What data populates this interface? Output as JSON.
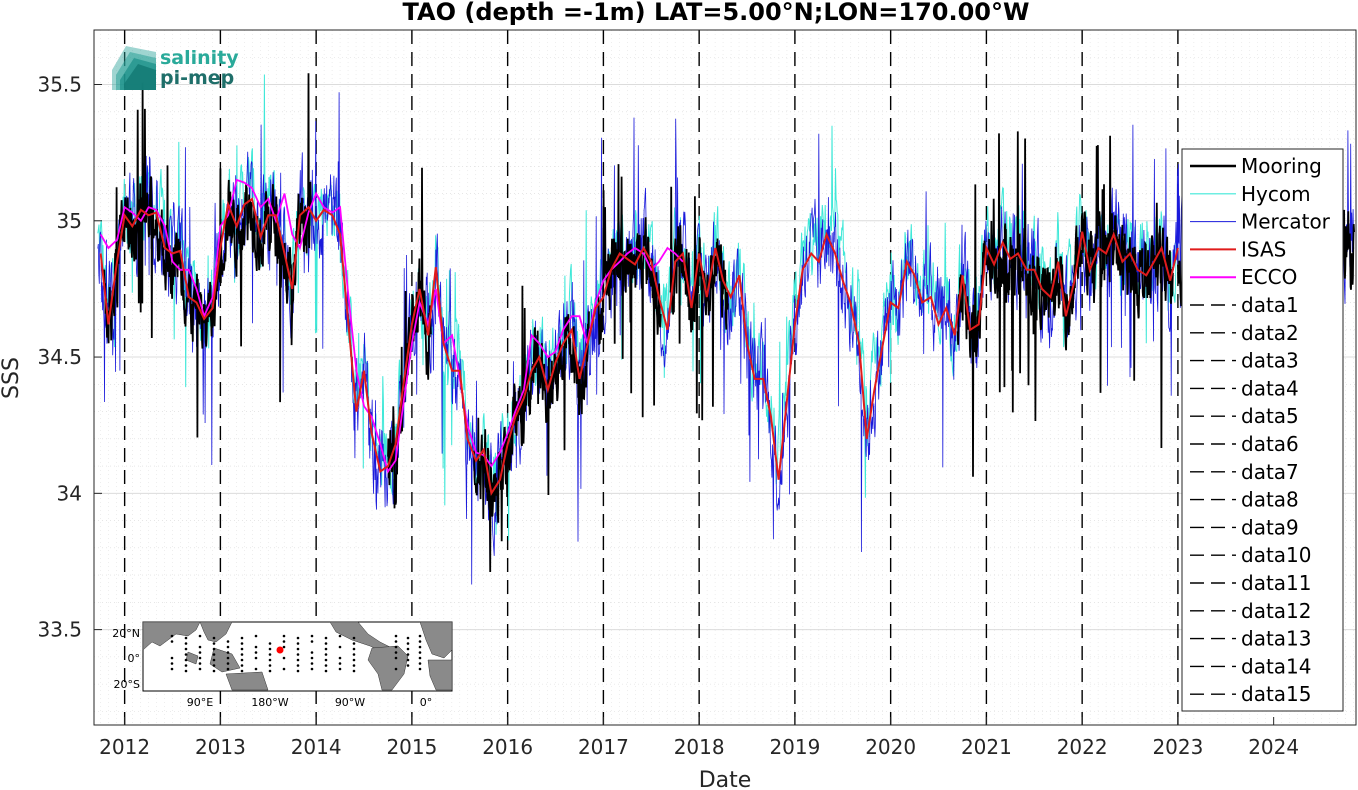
{
  "chart_data": {
    "type": "line",
    "title": "TAO (depth =-1m) LAT=5.00°N;LON=170.00°W",
    "xlabel": "Date",
    "ylabel": "SSS",
    "xlim": [
      "2011-09",
      "2024-11"
    ],
    "ylim": [
      33.15,
      35.7
    ],
    "x_ticks": [
      "2012",
      "2013",
      "2014",
      "2015",
      "2016",
      "2017",
      "2018",
      "2019",
      "2020",
      "2021",
      "2022",
      "2023",
      "2024"
    ],
    "y_ticks": [
      "33.5",
      "34",
      "34.5",
      "35",
      "35.5"
    ],
    "y_tick_values": [
      33.5,
      34.0,
      34.5,
      35.0,
      35.5
    ],
    "grid": true,
    "legend_position": "right",
    "colors": {
      "Mooring": "#000000",
      "Hycom": "#3fe8d8",
      "Mercator": "#1a1adb",
      "ISAS": "#e01b1b",
      "ECCO": "#ff00ff",
      "data": "#000000"
    },
    "vertical_markers": [
      2012.0,
      2013.0,
      2014.0,
      2015.0,
      2016.0,
      2017.0,
      2018.0,
      2019.0,
      2020.0,
      2021.0,
      2022.0,
      2023.0
    ],
    "series": [
      {
        "name": "ISAS",
        "x": [
          2011.75,
          2011.83,
          2011.92,
          2012.0,
          2012.08,
          2012.17,
          2012.25,
          2012.33,
          2012.42,
          2012.5,
          2012.58,
          2012.67,
          2012.75,
          2012.83,
          2012.92,
          2013.0,
          2013.08,
          2013.17,
          2013.25,
          2013.33,
          2013.42,
          2013.5,
          2013.58,
          2013.67,
          2013.75,
          2013.83,
          2013.92,
          2014.0,
          2014.08,
          2014.17,
          2014.25,
          2014.33,
          2014.42,
          2014.5,
          2014.58,
          2014.67,
          2014.75,
          2014.83,
          2014.92,
          2015.0,
          2015.08,
          2015.17,
          2015.25,
          2015.33,
          2015.42,
          2015.5,
          2015.58,
          2015.67,
          2015.75,
          2015.83,
          2015.92,
          2016.0,
          2016.08,
          2016.17,
          2016.25,
          2016.33,
          2016.42,
          2016.5,
          2016.58,
          2016.67,
          2016.75,
          2016.83,
          2016.92,
          2017.0,
          2017.08,
          2017.17,
          2017.25,
          2017.33,
          2017.42,
          2017.5,
          2017.58,
          2017.67,
          2017.75,
          2017.83,
          2017.92,
          2018.0,
          2018.08,
          2018.17,
          2018.25,
          2018.33,
          2018.42,
          2018.5,
          2018.58,
          2018.67,
          2018.75,
          2018.83,
          2018.92,
          2019.0,
          2019.08,
          2019.17,
          2019.25,
          2019.33,
          2019.42,
          2019.5,
          2019.58,
          2019.67,
          2019.75,
          2019.83,
          2019.92,
          2020.0,
          2020.08,
          2020.17,
          2020.25,
          2020.33,
          2020.42,
          2020.5,
          2020.58,
          2020.67,
          2020.75,
          2020.83,
          2020.92,
          2021.0,
          2021.08,
          2021.17,
          2021.25,
          2021.33,
          2021.42,
          2021.5,
          2021.58,
          2021.67,
          2021.75,
          2021.83,
          2021.92,
          2022.0,
          2022.08,
          2022.17,
          2022.25,
          2022.33,
          2022.42,
          2022.5,
          2022.58,
          2022.67,
          2022.75,
          2022.83,
          2022.92,
          2023.0
        ],
        "y": [
          34.88,
          34.62,
          34.85,
          35.02,
          34.98,
          35.04,
          35.02,
          35.03,
          34.9,
          34.88,
          34.89,
          34.72,
          34.7,
          34.64,
          34.68,
          34.9,
          35.06,
          34.98,
          35.06,
          35.08,
          34.94,
          35.02,
          35.02,
          34.88,
          34.75,
          35.02,
          35.05,
          35.0,
          35.04,
          35.02,
          34.95,
          34.65,
          34.3,
          34.45,
          34.22,
          34.08,
          34.1,
          34.18,
          34.42,
          34.62,
          34.75,
          34.58,
          34.83,
          34.55,
          34.45,
          34.45,
          34.2,
          34.12,
          34.16,
          34.0,
          34.05,
          34.18,
          34.28,
          34.35,
          34.45,
          34.5,
          34.38,
          34.48,
          34.55,
          34.6,
          34.42,
          34.54,
          34.68,
          34.72,
          34.82,
          34.88,
          34.86,
          34.84,
          34.9,
          34.85,
          34.72,
          34.6,
          34.85,
          34.88,
          34.68,
          34.88,
          34.72,
          34.9,
          34.78,
          34.72,
          34.8,
          34.55,
          34.42,
          34.42,
          34.28,
          34.05,
          34.35,
          34.62,
          34.82,
          34.88,
          34.85,
          34.95,
          34.88,
          34.78,
          34.7,
          34.55,
          34.2,
          34.38,
          34.55,
          34.7,
          34.68,
          34.85,
          34.8,
          34.7,
          34.72,
          34.62,
          34.68,
          34.58,
          34.8,
          34.6,
          34.62,
          34.9,
          34.84,
          34.92,
          34.86,
          34.88,
          34.82,
          34.82,
          34.75,
          34.72,
          34.85,
          34.65,
          34.78,
          34.96,
          34.82,
          34.9,
          34.88,
          34.95,
          34.85,
          34.88,
          34.82,
          34.8,
          34.85,
          34.9,
          34.78,
          34.9
        ]
      },
      {
        "name": "ECCO",
        "x": [
          2011.75,
          2011.83,
          2011.92,
          2012.0,
          2012.08,
          2012.17,
          2012.25,
          2012.33,
          2012.42,
          2012.5,
          2012.58,
          2012.67,
          2012.75,
          2012.83,
          2012.92,
          2013.0,
          2013.08,
          2013.17,
          2013.25,
          2013.33,
          2013.42,
          2013.5,
          2013.58,
          2013.67,
          2013.75,
          2013.83,
          2013.92,
          2014.0,
          2014.08,
          2014.17,
          2014.25,
          2014.33,
          2014.42,
          2014.5,
          2014.58,
          2014.67,
          2014.75,
          2014.83,
          2014.92,
          2015.0,
          2015.08,
          2015.17,
          2015.25,
          2015.33,
          2015.42,
          2015.5,
          2015.58,
          2015.67,
          2015.75,
          2015.83,
          2015.92,
          2016.0,
          2016.08,
          2016.17,
          2016.25,
          2016.33,
          2016.42,
          2016.5,
          2016.58,
          2016.67,
          2016.75,
          2016.83,
          2016.92,
          2017.0,
          2017.08,
          2017.17,
          2017.25,
          2017.33,
          2017.42,
          2017.5,
          2017.58,
          2017.67,
          2017.75,
          2017.83
        ],
        "y": [
          34.95,
          34.9,
          34.93,
          35.05,
          35.03,
          35.0,
          35.05,
          35.04,
          34.98,
          34.85,
          34.82,
          34.82,
          34.75,
          34.65,
          34.72,
          34.98,
          35.02,
          35.15,
          35.14,
          35.12,
          35.05,
          35.08,
          35.0,
          35.1,
          34.95,
          34.9,
          35.03,
          35.1,
          35.05,
          35.03,
          35.05,
          34.75,
          34.45,
          34.32,
          34.28,
          34.18,
          34.08,
          34.12,
          34.35,
          34.55,
          34.7,
          34.62,
          34.75,
          34.55,
          34.58,
          34.42,
          34.25,
          34.15,
          34.14,
          34.1,
          34.15,
          34.22,
          34.3,
          34.38,
          34.58,
          34.55,
          34.5,
          34.52,
          34.6,
          34.65,
          34.65,
          34.55,
          34.7,
          34.78,
          34.82,
          34.85,
          34.88,
          34.9,
          34.88,
          34.82,
          34.85,
          34.9,
          34.88,
          34.85
        ]
      },
      {
        "name": "Mooring",
        "x": [],
        "y": []
      },
      {
        "name": "Hycom",
        "x": [],
        "y": []
      },
      {
        "name": "Mercator",
        "x": [],
        "y": []
      }
    ],
    "legend": [
      "Mooring",
      "Hycom",
      "Mercator",
      "ISAS",
      "ECCO",
      "data1",
      "data2",
      "data3",
      "data4",
      "data5",
      "data6",
      "data7",
      "data8",
      "data9",
      "data10",
      "data11",
      "data12",
      "data13",
      "data14",
      "data15"
    ]
  },
  "logo": {
    "line1": "salinity",
    "line2": "pi-mep"
  },
  "inset_map": {
    "lat_labels": [
      "20°N",
      "0°",
      "20°S"
    ],
    "lon_labels": [
      "90°E",
      "180°W",
      "90°W",
      "0°"
    ]
  }
}
